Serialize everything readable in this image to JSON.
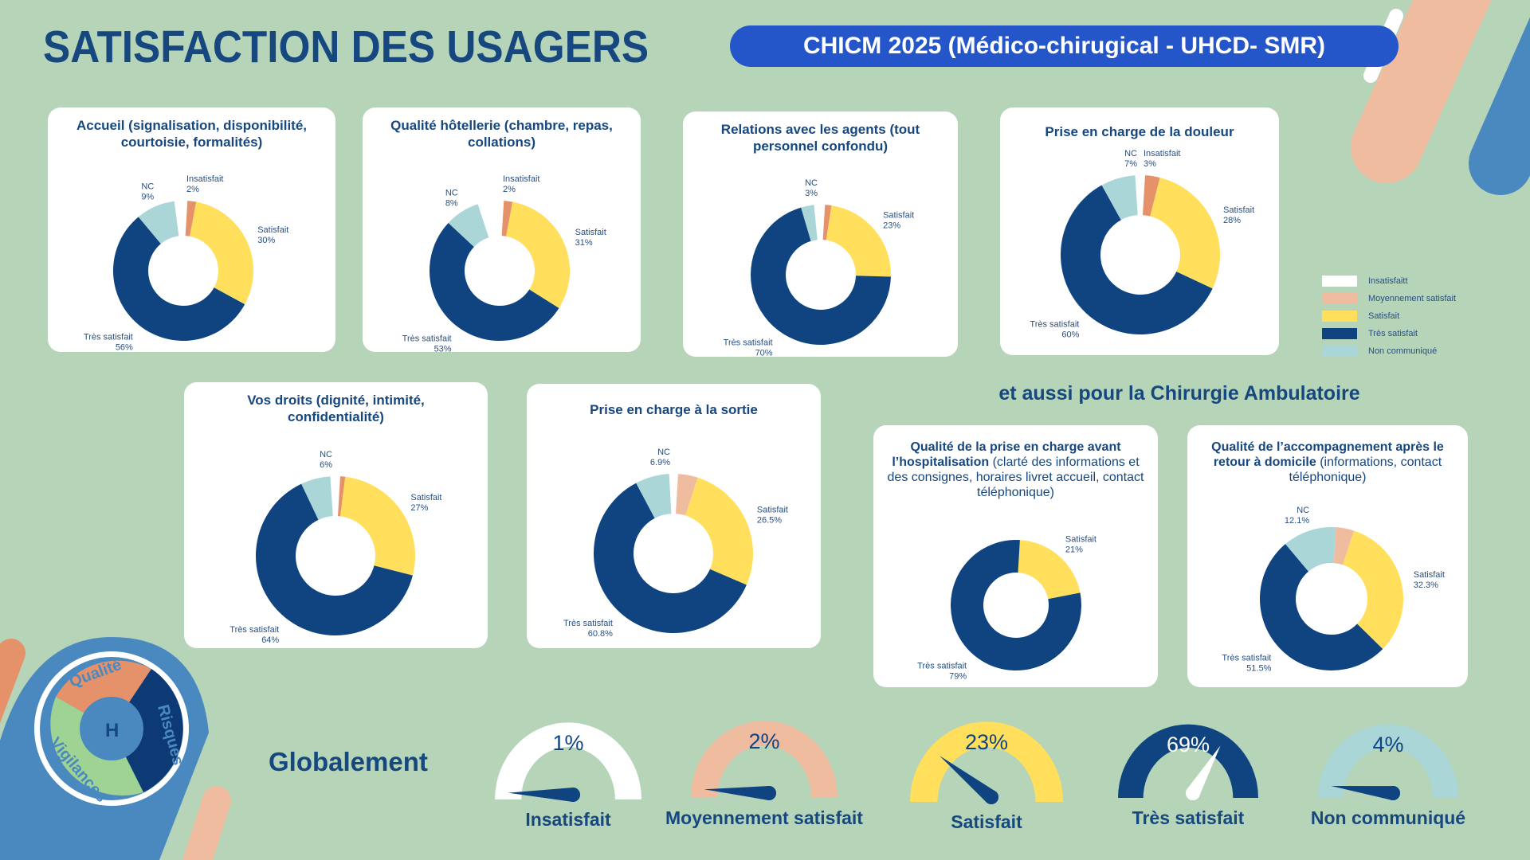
{
  "header": {
    "title": "SATISFACTION DES USAGERS",
    "subtitle": "CHICM 2025 (Médico-chirugical - UHCD- SMR)"
  },
  "section_ambulatoire": "et aussi pour la Chirurgie Ambulatoire",
  "section_global": "Globalement",
  "logo": {
    "words": [
      "Qualité",
      "Risques",
      "Vigilances"
    ],
    "letter": "H"
  },
  "colors": {
    "background": "#b5d4b8",
    "navy": "#0f4480",
    "insatisfait": "#ffffff",
    "moyennement": "#efbca0",
    "orange": "#e5916a",
    "satisfait": "#ffdf5c",
    "tres_satisfait": "#0f4480",
    "nc": "#aad6d8",
    "pill": "#2456c9"
  },
  "legend": [
    {
      "label": "Insatisfaitt",
      "color": "#ffffff"
    },
    {
      "label": "Moyennement satisfait",
      "color": "#efbca0"
    },
    {
      "label": "Satisfait",
      "color": "#ffdf5c"
    },
    {
      "label": "Très satisfait",
      "color": "#0f4480"
    },
    {
      "label": "Non communiqué",
      "color": "#aad6d8"
    }
  ],
  "chart_data": [
    {
      "type": "pie",
      "title": "Accueil (signalisation, disponibilité, courtoisie, formalités)",
      "slices": [
        {
          "label": "Insatisfait",
          "value": 2,
          "display": "2%",
          "color": "#e5916a"
        },
        {
          "label": "Satisfait",
          "value": 30,
          "display": "30%",
          "color": "#ffdf5c"
        },
        {
          "label": "Très satisfait",
          "value": 56,
          "display": "56%",
          "color": "#0f4480"
        },
        {
          "label": "NC",
          "value": 9,
          "display": "9%",
          "color": "#aad6d8"
        }
      ]
    },
    {
      "type": "pie",
      "title": "Qualité hôtellerie (chambre, repas, collations)",
      "slices": [
        {
          "label": "Insatisfait",
          "value": 2,
          "display": "2%",
          "color": "#e5916a"
        },
        {
          "label": "Satisfait",
          "value": 31,
          "display": "31%",
          "color": "#ffdf5c"
        },
        {
          "label": "Très satisfait",
          "value": 53,
          "display": "53%",
          "color": "#0f4480"
        },
        {
          "label": "NC",
          "value": 8,
          "display": "8%",
          "color": "#aad6d8"
        }
      ]
    },
    {
      "type": "pie",
      "title": "Relations avec les agents (tout personnel confondu)",
      "slices": [
        {
          "label": "",
          "value": 1.5,
          "display": "",
          "color": "#e5916a"
        },
        {
          "label": "Satisfait",
          "value": 23,
          "display": "23%",
          "color": "#ffdf5c"
        },
        {
          "label": "Très satisfait",
          "value": 70,
          "display": "70%",
          "color": "#0f4480"
        },
        {
          "label": "NC",
          "value": 3,
          "display": "3%",
          "color": "#aad6d8"
        }
      ]
    },
    {
      "type": "pie",
      "title": "Prise en charge de la douleur",
      "slices": [
        {
          "label": "Insatisfait",
          "value": 3,
          "display": "3%",
          "color": "#e5916a"
        },
        {
          "label": "Satisfait",
          "value": 28,
          "display": "28%",
          "color": "#ffdf5c"
        },
        {
          "label": "Très satisfait",
          "value": 60,
          "display": "60%",
          "color": "#0f4480"
        },
        {
          "label": "NC",
          "value": 7,
          "display": "7%",
          "color": "#aad6d8"
        }
      ]
    },
    {
      "type": "pie",
      "title": "Vos droits (dignité, intimité, confidentialité)",
      "slices": [
        {
          "label": "",
          "value": 1,
          "display": "",
          "color": "#e5916a"
        },
        {
          "label": "Satisfait",
          "value": 27,
          "display": "27%",
          "color": "#ffdf5c"
        },
        {
          "label": "Très satisfait",
          "value": 64,
          "display": "64%",
          "color": "#0f4480"
        },
        {
          "label": "NC",
          "value": 6,
          "display": "6%",
          "color": "#aad6d8"
        }
      ]
    },
    {
      "type": "pie",
      "title": "Prise en charge à la sortie",
      "slices": [
        {
          "label": "",
          "value": 4,
          "display": "",
          "color": "#efbca0"
        },
        {
          "label": "Satisfait",
          "value": 26.5,
          "display": "26.5%",
          "color": "#ffdf5c"
        },
        {
          "label": "Très satisfait",
          "value": 60.8,
          "display": "60.8%",
          "color": "#0f4480"
        },
        {
          "label": "NC",
          "value": 6.9,
          "display": "6.9%",
          "color": "#aad6d8"
        }
      ]
    },
    {
      "type": "pie",
      "title_bold": "Qualité de la prise en charge avant l’hospitalisation",
      "title_normal": " (clarté des informations et des consignes, horaires livret accueil, contact téléphonique)",
      "slices": [
        {
          "label": "Satisfait",
          "value": 21,
          "display": "21%",
          "color": "#ffdf5c"
        },
        {
          "label": "Très satisfait",
          "value": 79,
          "display": "79%",
          "color": "#0f4480"
        }
      ]
    },
    {
      "type": "pie",
      "title_bold": "Qualité de l’accompagnement après le retour à domicile",
      "title_normal": " (informations, contact téléphonique)",
      "slices": [
        {
          "label": "",
          "value": 4.1,
          "display": "",
          "color": "#efbca0"
        },
        {
          "label": "Satisfait",
          "value": 32.3,
          "display": "32.3%",
          "color": "#ffdf5c"
        },
        {
          "label": "Très satisfait",
          "value": 51.5,
          "display": "51.5%",
          "color": "#0f4480"
        },
        {
          "label": "NC",
          "value": 12.1,
          "display": "12.1%",
          "color": "#aad6d8"
        }
      ]
    },
    {
      "type": "gauge",
      "title": "Globalement",
      "gauges": [
        {
          "label": "Insatisfait",
          "value": 1,
          "display": "1%",
          "color": "#ffffff",
          "needle": "#0f4480",
          "text": "#0f4480"
        },
        {
          "label": "Moyennement satisfait",
          "value": 2,
          "display": "2%",
          "color": "#efbca0",
          "needle": "#0f4480",
          "text": "#0f4480"
        },
        {
          "label": "Satisfait",
          "value": 23,
          "display": "23%",
          "color": "#ffdf5c",
          "needle": "#0f4480",
          "text": "#0f4480"
        },
        {
          "label": "Très satisfait",
          "value": 69,
          "display": "69%",
          "color": "#0f4480",
          "needle": "#ffffff",
          "text": "#ffffff"
        },
        {
          "label": "Non communiqué",
          "value": 4,
          "display": "4%",
          "color": "#aad6d8",
          "needle": "#0f4480",
          "text": "#0f4480"
        }
      ]
    }
  ]
}
